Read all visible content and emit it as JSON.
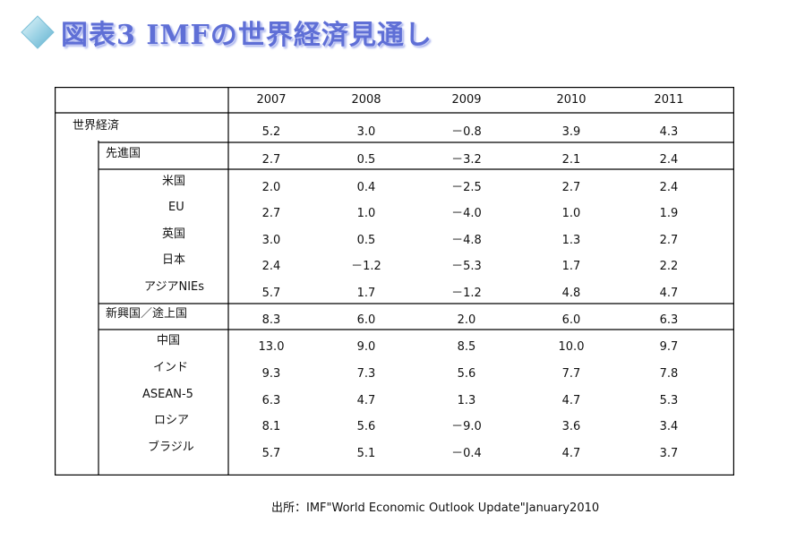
{
  "title": "図表3 IMFの世界経済見通し",
  "table": {
    "years": [
      "2007",
      "2008",
      "2009",
      "2010",
      "2011"
    ],
    "rows": [
      {
        "label": "世界経済",
        "values": [
          "5.2",
          "3.0",
          "－0.8",
          "3.9",
          "4.3"
        ]
      },
      {
        "label": "先進国",
        "values": [
          "2.7",
          "0.5",
          "－3.2",
          "2.1",
          "2.4"
        ]
      },
      {
        "label": "米国",
        "values": [
          "2.0",
          "0.4",
          "－2.5",
          "2.7",
          "2.4"
        ]
      },
      {
        "label": "EU",
        "values": [
          "2.7",
          "1.0",
          "－4.0",
          "1.0",
          "1.9"
        ]
      },
      {
        "label": "英国",
        "values": [
          "3.0",
          "0.5",
          "－4.8",
          "1.3",
          "2.7"
        ]
      },
      {
        "label": "日本",
        "values": [
          "2.4",
          "－1.2",
          "－5.3",
          "1.7",
          "2.2"
        ]
      },
      {
        "label": "アジアNIEs",
        "values": [
          "5.7",
          "1.7",
          "－1.2",
          "4.8",
          "4.7"
        ]
      },
      {
        "label": "新興国／途上国",
        "values": [
          "8.3",
          "6.0",
          "2.0",
          "6.0",
          "6.3"
        ]
      },
      {
        "label": "中国",
        "values": [
          "13.0",
          "9.0",
          "8.5",
          "10.0",
          "9.7"
        ]
      },
      {
        "label": "インド",
        "values": [
          "9.3",
          "7.3",
          "5.6",
          "7.7",
          "7.8"
        ]
      },
      {
        "label": "ASEAN-5",
        "values": [
          "6.3",
          "4.7",
          "1.3",
          "4.7",
          "5.3"
        ]
      },
      {
        "label": "ロシア",
        "values": [
          "8.1",
          "5.6",
          "－9.0",
          "3.6",
          "3.4"
        ]
      },
      {
        "label": "ブラジル",
        "values": [
          "5.7",
          "5.1",
          "－0.4",
          "4.7",
          "3.7"
        ]
      }
    ]
  },
  "source": "出所：IMF\"World Economic Outlook Update\"January2010"
}
